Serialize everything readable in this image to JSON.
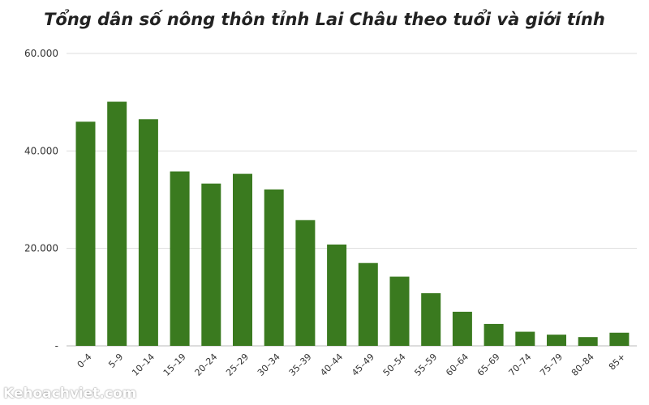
{
  "chart_data": {
    "type": "bar",
    "title": "Tổng dân số nông thôn tỉnh Lai Châu theo tuổi và giới tính",
    "categories": [
      "0–4",
      "5–9",
      "10–14",
      "15–19",
      "20–24",
      "25–29",
      "30–34",
      "35–39",
      "40–44",
      "45–49",
      "50–54",
      "55–59",
      "60–64",
      "65–69",
      "70–74",
      "75–79",
      "80–84",
      "85+"
    ],
    "values": [
      46000,
      50100,
      46500,
      35800,
      33300,
      35300,
      32100,
      25800,
      20800,
      17000,
      14200,
      10800,
      7000,
      4500,
      2900,
      2300,
      1800,
      2700
    ],
    "ylim": [
      0,
      60000
    ],
    "yticks": [
      0,
      20000,
      40000,
      60000
    ],
    "ytick_labels": [
      "-",
      "20.000",
      "40.000",
      "60.000"
    ],
    "grid": true,
    "bar_color": "#3a7a1f"
  },
  "watermark": "Kehoachviet.com"
}
